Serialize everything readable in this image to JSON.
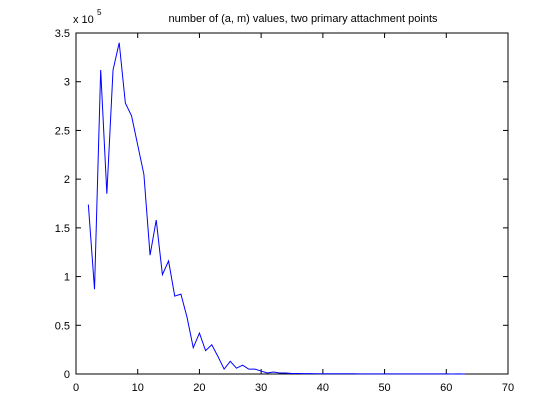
{
  "chart_data": {
    "type": "line",
    "title": "number of (a, m) values, two primary attachment points",
    "y_multiplier": {
      "base": "x 10",
      "exponent": "5"
    },
    "x": [
      2,
      3,
      4,
      5,
      6,
      7,
      8,
      9,
      10,
      11,
      12,
      13,
      14,
      15,
      16,
      17,
      18,
      19,
      20,
      21,
      22,
      23,
      24,
      25,
      26,
      27,
      28,
      29,
      30,
      31,
      32,
      33,
      34,
      35,
      36,
      37,
      38,
      39,
      40,
      41,
      42,
      43,
      44,
      45,
      46,
      47,
      48,
      49,
      50,
      51,
      52,
      53,
      54,
      55,
      56,
      57,
      58,
      59,
      60,
      61,
      62,
      63
    ],
    "series": [
      {
        "color": "#0000ff",
        "values": [
          1.74,
          0.87,
          3.12,
          1.85,
          3.12,
          3.4,
          2.78,
          2.65,
          2.35,
          2.05,
          1.22,
          1.58,
          1.02,
          1.16,
          0.8,
          0.82,
          0.58,
          0.27,
          0.42,
          0.24,
          0.3,
          0.18,
          0.05,
          0.13,
          0.06,
          0.09,
          0.05,
          0.05,
          0.03,
          0.01,
          0.02,
          0.01,
          0.01,
          0.005,
          0.005,
          0.004,
          0.004,
          0.003,
          0.003,
          0.003,
          0.002,
          0.002,
          0.002,
          0.002,
          0.001,
          0.001,
          0.001,
          0.001,
          0.001,
          0.001,
          0.001,
          0.001,
          0.001,
          0.001,
          0.001,
          0.001,
          0.001,
          0.001,
          0.001,
          0,
          0.001,
          0
        ]
      }
    ],
    "xlim": [
      0,
      70
    ],
    "xticks": [
      0,
      10,
      20,
      30,
      40,
      50,
      60,
      70
    ],
    "ylim": [
      0,
      3.5
    ],
    "yticks": [
      0,
      0.5,
      1,
      1.5,
      2,
      2.5,
      3,
      3.5
    ],
    "grid": false
  }
}
